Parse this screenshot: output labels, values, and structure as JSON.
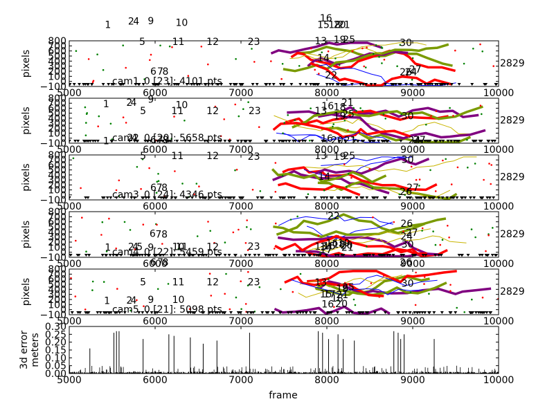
{
  "figure": {
    "xlabel": "frame"
  },
  "chart_data": [
    {
      "type": "scatter",
      "ylabel": "pixels",
      "xlim": [
        5000,
        10000
      ],
      "ylim": [
        -100,
        800
      ],
      "yticks": [
        "−100",
        "0",
        "100",
        "200",
        "300",
        "400",
        "500",
        "600",
        "700",
        "800"
      ],
      "xticks": [
        "5000",
        "6000",
        "7000",
        "8000",
        "9000",
        "10000"
      ],
      "annotation": "cam1_0 [23]: 4101 pts",
      "right_label": "2829",
      "track_labels": [
        {
          "t": "1",
          "x": 5450,
          "y": 1050
        },
        {
          "t": "2",
          "x": 5720,
          "y": 1120
        },
        {
          "t": "4",
          "x": 5780,
          "y": 1120
        },
        {
          "t": "9",
          "x": 5950,
          "y": 1130
        },
        {
          "t": "10",
          "x": 6310,
          "y": 1090
        },
        {
          "t": "5",
          "x": 5850,
          "y": 720
        },
        {
          "t": "11",
          "x": 6270,
          "y": 720
        },
        {
          "t": "12",
          "x": 6670,
          "y": 720
        },
        {
          "t": "23",
          "x": 7150,
          "y": 720
        },
        {
          "t": "13",
          "x": 7930,
          "y": 730
        },
        {
          "t": "16",
          "x": 7990,
          "y": 1180
        },
        {
          "t": "15",
          "x": 7960,
          "y": 1050
        },
        {
          "t": "18",
          "x": 8090,
          "y": 1050
        },
        {
          "t": "20",
          "x": 8150,
          "y": 1050
        },
        {
          "t": "21",
          "x": 8200,
          "y": 1050
        },
        {
          "t": "19",
          "x": 8150,
          "y": 760
        },
        {
          "t": "25",
          "x": 8260,
          "y": 760
        },
        {
          "t": "14",
          "x": 7960,
          "y": 400
        },
        {
          "t": "22",
          "x": 8050,
          "y": 60
        },
        {
          "t": "30",
          "x": 8920,
          "y": 700
        },
        {
          "t": "24",
          "x": 8980,
          "y": 120
        },
        {
          "t": "26",
          "x": 8920,
          "y": 120
        },
        {
          "t": "27",
          "x": 9030,
          "y": 170
        },
        {
          "t": "6",
          "x": 5980,
          "y": 130
        },
        {
          "t": "7",
          "x": 6060,
          "y": 130
        },
        {
          "t": "8",
          "x": 6120,
          "y": 130
        }
      ]
    },
    {
      "type": "scatter",
      "ylabel": "pixels",
      "xlim": [
        5000,
        10000
      ],
      "ylim": [
        -100,
        800
      ],
      "yticks": [
        "−100",
        "0",
        "100",
        "200",
        "300",
        "400",
        "500",
        "600",
        "700",
        "800"
      ],
      "xticks": [
        "5000",
        "6000",
        "7000",
        "8000",
        "9000",
        "10000"
      ],
      "annotation": "cam2_0 [20]: 5658 pts",
      "right_label": "2829",
      "track_labels": [
        {
          "t": "1",
          "x": 5430,
          "y": 620
        },
        {
          "t": "2",
          "x": 5700,
          "y": 650
        },
        {
          "t": "4",
          "x": 5750,
          "y": 650
        },
        {
          "t": "9",
          "x": 5950,
          "y": 710
        },
        {
          "t": "10",
          "x": 6310,
          "y": 600
        },
        {
          "t": "5",
          "x": 5860,
          "y": 480
        },
        {
          "t": "11",
          "x": 6260,
          "y": 480
        },
        {
          "t": "12",
          "x": 6670,
          "y": 480
        },
        {
          "t": "23",
          "x": 7160,
          "y": 480
        },
        {
          "t": "13",
          "x": 7930,
          "y": 480
        },
        {
          "t": "16",
          "x": 8010,
          "y": 580
        },
        {
          "t": "21",
          "x": 8240,
          "y": 650
        },
        {
          "t": "18",
          "x": 8150,
          "y": 560
        },
        {
          "t": "19",
          "x": 8150,
          "y": 380
        },
        {
          "t": "25",
          "x": 8250,
          "y": 420
        },
        {
          "t": "30",
          "x": 8940,
          "y": 380
        },
        {
          "t": "1",
          "x": 5430,
          "y": -120
        },
        {
          "t": "2",
          "x": 5710,
          "y": -60
        },
        {
          "t": "4",
          "x": 5760,
          "y": -60
        },
        {
          "t": "6",
          "x": 5980,
          "y": -100
        },
        {
          "t": "7",
          "x": 6060,
          "y": -100
        },
        {
          "t": "8",
          "x": 6120,
          "y": -100
        },
        {
          "t": "16",
          "x": 8000,
          "y": -70
        },
        {
          "t": "20",
          "x": 8120,
          "y": -110
        },
        {
          "t": "21",
          "x": 8270,
          "y": -110
        },
        {
          "t": "24",
          "x": 9020,
          "y": -110
        },
        {
          "t": "27",
          "x": 9080,
          "y": -100
        }
      ]
    },
    {
      "type": "scatter",
      "ylabel": "pixels",
      "xlim": [
        5000,
        10000
      ],
      "ylim": [
        -100,
        800
      ],
      "yticks": [
        "−100",
        "0",
        "100",
        "200",
        "300",
        "400",
        "500",
        "600",
        "700",
        "800"
      ],
      "xticks": [
        "5000",
        "6000",
        "7000",
        "8000",
        "9000",
        "10000"
      ],
      "annotation": "cam3_0 [24]: 4346 pts",
      "right_label": "2829",
      "track_labels": [
        {
          "t": "5",
          "x": 5860,
          "y": 720
        },
        {
          "t": "11",
          "x": 6260,
          "y": 720
        },
        {
          "t": "12",
          "x": 6670,
          "y": 720
        },
        {
          "t": "23",
          "x": 7150,
          "y": 700
        },
        {
          "t": "13",
          "x": 7930,
          "y": 720
        },
        {
          "t": "19",
          "x": 8150,
          "y": 700
        },
        {
          "t": "25",
          "x": 8260,
          "y": 720
        },
        {
          "t": "30",
          "x": 8940,
          "y": 640
        },
        {
          "t": "14",
          "x": 7970,
          "y": 300
        },
        {
          "t": "27",
          "x": 9000,
          "y": 80
        },
        {
          "t": "26",
          "x": 8920,
          "y": 0
        },
        {
          "t": "6",
          "x": 5980,
          "y": 80
        },
        {
          "t": "7",
          "x": 6050,
          "y": 80
        },
        {
          "t": "8",
          "x": 6110,
          "y": 80
        }
      ]
    },
    {
      "type": "scatter",
      "ylabel": "pixels",
      "xlim": [
        5000,
        10000
      ],
      "ylim": [
        -100,
        800
      ],
      "yticks": [
        "−100",
        "0",
        "100",
        "200",
        "300",
        "400",
        "500",
        "600",
        "700",
        "800"
      ],
      "xticks": [
        "5000",
        "6000",
        "7000",
        "8000",
        "9000",
        "10000"
      ],
      "annotation": "cam4_0 [22]: 5459 pts",
      "right_label": "2829",
      "track_labels": [
        {
          "t": "22",
          "x": 8080,
          "y": 650
        },
        {
          "t": "26",
          "x": 8930,
          "y": 500
        },
        {
          "t": "27",
          "x": 8990,
          "y": 320
        },
        {
          "t": "24",
          "x": 8930,
          "y": 250
        },
        {
          "t": "6",
          "x": 5970,
          "y": 300
        },
        {
          "t": "7",
          "x": 6040,
          "y": 290
        },
        {
          "t": "8",
          "x": 6110,
          "y": 290
        },
        {
          "t": "1",
          "x": 5450,
          "y": 30
        },
        {
          "t": "2",
          "x": 5720,
          "y": 40
        },
        {
          "t": "4",
          "x": 5770,
          "y": 40
        },
        {
          "t": "5",
          "x": 5820,
          "y": 40
        },
        {
          "t": "9",
          "x": 5950,
          "y": 30
        },
        {
          "t": "10",
          "x": 6270,
          "y": 40
        },
        {
          "t": "11",
          "x": 6310,
          "y": 40
        },
        {
          "t": "12",
          "x": 6670,
          "y": 40
        },
        {
          "t": "23",
          "x": 7150,
          "y": 50
        },
        {
          "t": "13",
          "x": 7930,
          "y": 50
        },
        {
          "t": "14",
          "x": 7990,
          "y": 40
        },
        {
          "t": "15",
          "x": 8030,
          "y": 60
        },
        {
          "t": "16",
          "x": 8060,
          "y": 120
        },
        {
          "t": "18",
          "x": 8140,
          "y": 90
        },
        {
          "t": "19",
          "x": 8200,
          "y": 120
        },
        {
          "t": "20",
          "x": 8230,
          "y": 70
        },
        {
          "t": "21",
          "x": 8240,
          "y": 30
        },
        {
          "t": "30",
          "x": 8940,
          "y": 90
        },
        {
          "t": "17",
          "x": 7990,
          "y": -20
        }
      ]
    },
    {
      "type": "scatter",
      "ylabel": "pixels",
      "xlim": [
        5000,
        10000
      ],
      "ylim": [
        -100,
        800
      ],
      "yticks": [
        "−100",
        "0",
        "100",
        "200",
        "300",
        "400",
        "500",
        "600",
        "700",
        "800"
      ],
      "xticks": [
        "5000",
        "6000",
        "7000",
        "8000",
        "9000",
        "10000"
      ],
      "annotation": "cam5_0 [21]: 5098 pts",
      "right_label": "2829",
      "track_labels": [
        {
          "t": "6",
          "x": 5980,
          "y": 870
        },
        {
          "t": "7",
          "x": 6060,
          "y": 870
        },
        {
          "t": "8",
          "x": 6120,
          "y": 870
        },
        {
          "t": "26",
          "x": 8920,
          "y": 870
        },
        {
          "t": "5",
          "x": 5860,
          "y": 480
        },
        {
          "t": "11",
          "x": 6270,
          "y": 480
        },
        {
          "t": "12",
          "x": 6670,
          "y": 480
        },
        {
          "t": "23",
          "x": 7150,
          "y": 480
        },
        {
          "t": "13",
          "x": 7930,
          "y": 470
        },
        {
          "t": "30",
          "x": 8940,
          "y": 450
        },
        {
          "t": "19",
          "x": 8180,
          "y": 350
        },
        {
          "t": "25",
          "x": 8250,
          "y": 380
        },
        {
          "t": "15",
          "x": 7990,
          "y": 240
        },
        {
          "t": "17",
          "x": 8030,
          "y": 240
        },
        {
          "t": "18",
          "x": 8120,
          "y": 160
        },
        {
          "t": "16",
          "x": 8010,
          "y": 40
        },
        {
          "t": "20",
          "x": 8170,
          "y": 50
        },
        {
          "t": "21",
          "x": 8180,
          "y": 230
        },
        {
          "t": "2",
          "x": 5700,
          "y": 120
        },
        {
          "t": "4",
          "x": 5750,
          "y": 120
        },
        {
          "t": "9",
          "x": 5950,
          "y": 130
        },
        {
          "t": "10",
          "x": 6270,
          "y": 130
        },
        {
          "t": "1",
          "x": 5440,
          "y": 110
        }
      ]
    },
    {
      "type": "bar",
      "ylabel": "3d error\nmeters",
      "ylabel_lines": [
        "3d error",
        "meters"
      ],
      "xlim": [
        5000,
        10000
      ],
      "ylim": [
        0,
        0.3
      ],
      "yticks": [
        "0.00",
        "0.05",
        "0.10",
        "0.15",
        "0.20",
        "0.25",
        "0.30"
      ],
      "xticks": [
        "5000",
        "6000",
        "7000",
        "8000",
        "9000",
        "10000"
      ],
      "spikes": [
        {
          "x": 5240,
          "y": 0.16
        },
        {
          "x": 5520,
          "y": 0.26
        },
        {
          "x": 5550,
          "y": 0.27
        },
        {
          "x": 5580,
          "y": 0.27
        },
        {
          "x": 5860,
          "y": 0.22
        },
        {
          "x": 6160,
          "y": 0.25
        },
        {
          "x": 6220,
          "y": 0.24
        },
        {
          "x": 6410,
          "y": 0.23
        },
        {
          "x": 6560,
          "y": 0.19
        },
        {
          "x": 6720,
          "y": 0.21
        },
        {
          "x": 7100,
          "y": 0.26
        },
        {
          "x": 7900,
          "y": 0.27
        },
        {
          "x": 7950,
          "y": 0.26
        },
        {
          "x": 8020,
          "y": 0.22
        },
        {
          "x": 8130,
          "y": 0.25
        },
        {
          "x": 8190,
          "y": 0.22
        },
        {
          "x": 8320,
          "y": 0.21
        },
        {
          "x": 8780,
          "y": 0.27
        },
        {
          "x": 8830,
          "y": 0.26
        },
        {
          "x": 8860,
          "y": 0.22
        },
        {
          "x": 8900,
          "y": 0.25
        },
        {
          "x": 9250,
          "y": 0.22
        }
      ]
    }
  ]
}
